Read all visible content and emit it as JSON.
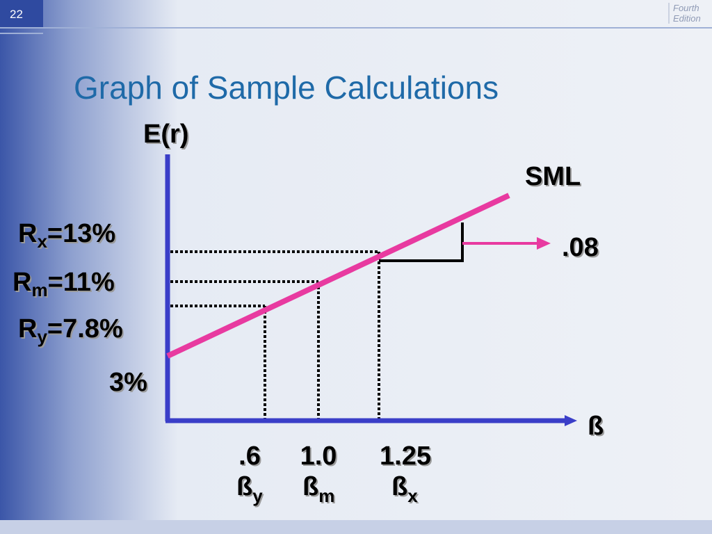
{
  "header": {
    "slide_number": "22",
    "edition": [
      "Fourth",
      "Edition"
    ],
    "title": "Graph of Sample Calculations"
  },
  "diagram": {
    "y_axis_label": "E(r)",
    "x_axis_label": "ß",
    "line_label": "SML",
    "slope_label": ".08",
    "y_labels": [
      {
        "symbol": "R",
        "subscript": "x",
        "text": "=13%"
      },
      {
        "symbol": "R",
        "subscript": "m",
        "text": "=11%"
      },
      {
        "symbol": "R",
        "subscript": "y",
        "text": "=7.8%"
      },
      {
        "text": "3%"
      }
    ],
    "x_labels": [
      {
        "value": ".6",
        "symbol": "ß",
        "subscript": "y"
      },
      {
        "value": "1.0",
        "symbol": "ß",
        "subscript": "m"
      },
      {
        "value": "1.25",
        "symbol": "ß",
        "subscript": "x"
      }
    ]
  }
}
